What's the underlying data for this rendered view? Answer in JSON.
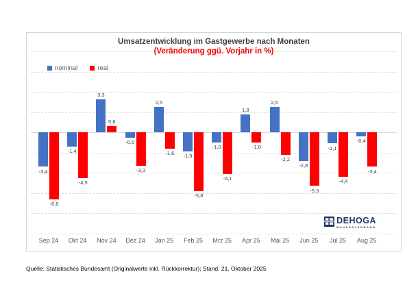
{
  "chart_data": {
    "type": "bar",
    "title": "Umsatzentwicklung im Gastgewerbe nach Monaten",
    "subtitle": "(Veränderung ggü. Vorjahr in %)",
    "xlabel": "",
    "ylabel": "",
    "categories": [
      "Sep 24",
      "Okt 24",
      "Nov 24",
      "Dez 24",
      "Jan 25",
      "Feb 25",
      "Mrz 25",
      "Apr 25",
      "Mai 25",
      "Jun 25",
      "Jul 25",
      "Aug 25"
    ],
    "series": [
      {
        "name": "nominal",
        "color": "#4472C4",
        "values": [
          -3.4,
          -1.4,
          3.3,
          -0.5,
          2.5,
          -1.9,
          -1.0,
          1.8,
          2.5,
          -2.8,
          -1.1,
          -0.4
        ],
        "labels": [
          "-3,4",
          "-1,4",
          "3,3",
          "-0,5",
          "2,5",
          "-1,9",
          "-1,0",
          "1,8",
          "2,5",
          "-2,8",
          "-1,1",
          "-0,4"
        ]
      },
      {
        "name": "real",
        "color": "#FF0000",
        "values": [
          -6.6,
          -4.5,
          0.6,
          -3.3,
          -1.6,
          -5.8,
          -4.1,
          -1.0,
          -2.2,
          -5.3,
          -4.4,
          -3.4
        ],
        "labels": [
          "-6,6",
          "-4,5",
          "0,6",
          "-3,3",
          "-1,6",
          "-5,8",
          "-4,1",
          "-1,0",
          "-2,2",
          "-5,3",
          "-4,4",
          "-3,4"
        ]
      }
    ],
    "ylim": [
      -10,
      8
    ],
    "grid": "on",
    "grid_step": 2,
    "legend_position": "top-left",
    "value_decimal_separator": ","
  },
  "colors": {
    "title": "#404040",
    "subtitle": "#FF0000",
    "axis_text": "#595959",
    "gridline": "#DCDCDC",
    "logo_navy": "#1F3864",
    "logo_red": "#E2001A"
  },
  "logo": {
    "name": "DEHOGA",
    "subtitle": "BUNDESVERBAND"
  },
  "source": {
    "text": "Quelle: Statistisches Bundesamt (Originalwerte inkl. Rückkorrektur); Stand: 21. Oktober 2025"
  }
}
